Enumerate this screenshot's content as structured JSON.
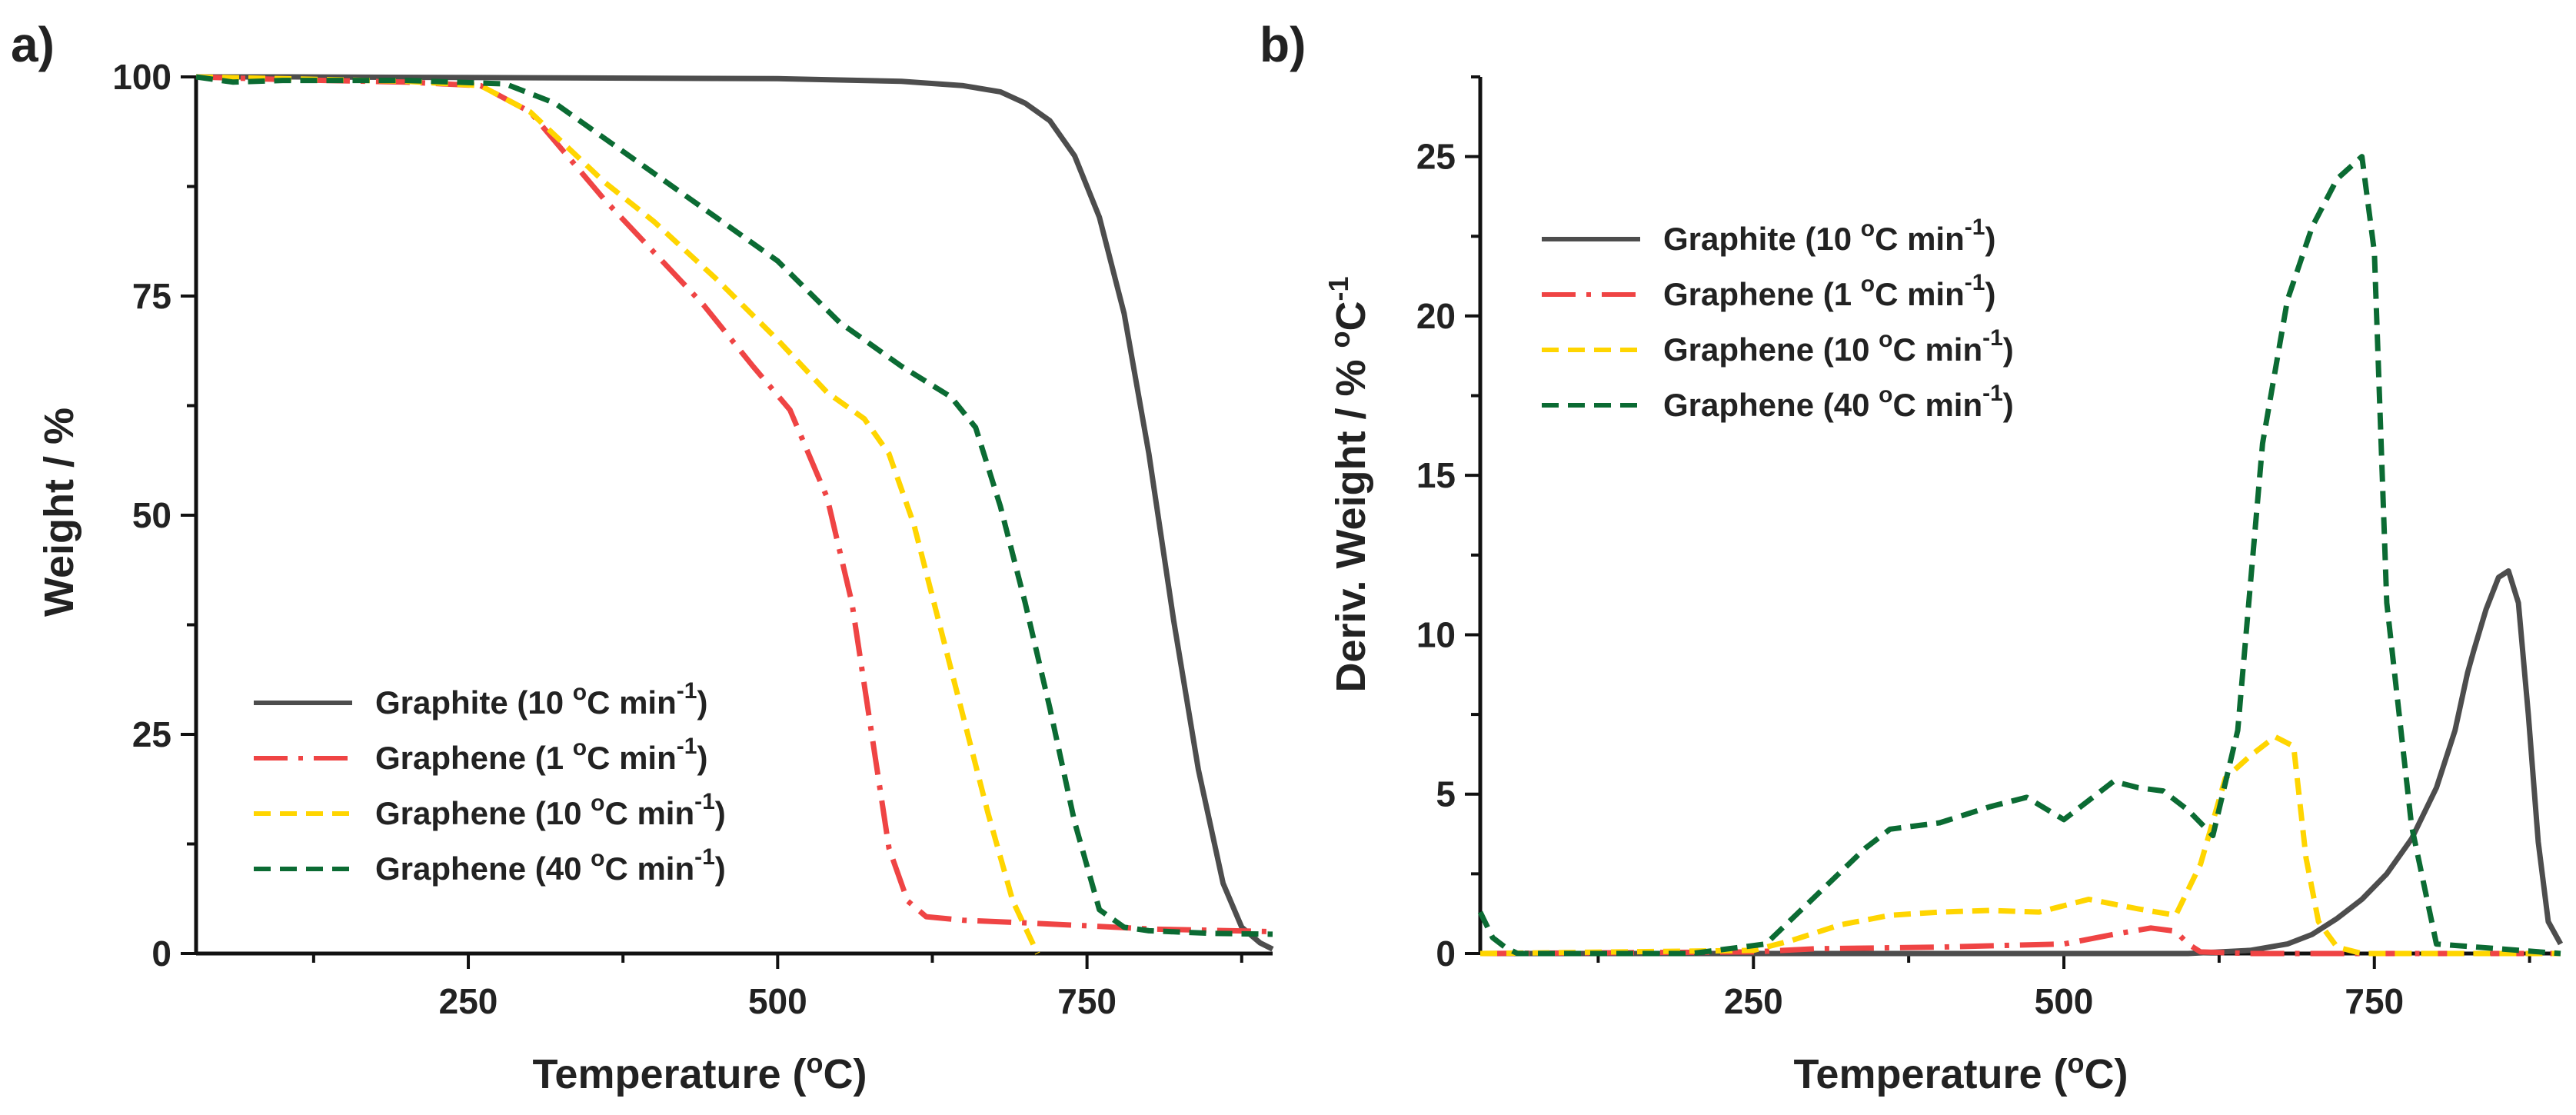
{
  "chart_data": [
    {
      "panel_label": "a)",
      "type": "line",
      "xlabel": "Temperature (°C)",
      "ylabel": "Weight / %",
      "xlim": [
        30,
        900
      ],
      "ylim": [
        0,
        100
      ],
      "xticks": [
        250,
        500,
        750
      ],
      "yticks": [
        0,
        25,
        50,
        75,
        100
      ],
      "legend_position": "bottom-left",
      "series": [
        {
          "name": "Graphite (10 °C min⁻¹)",
          "label_main": "Graphite (10 ",
          "label_o": "o",
          "label_mid": "C min",
          "label_exp": "-1",
          "label_end": ")",
          "color": "#4d4d4d",
          "style": "solid",
          "x": [
            30,
            100,
            300,
            500,
            600,
            650,
            680,
            700,
            720,
            740,
            760,
            780,
            800,
            820,
            840,
            860,
            875,
            890,
            900
          ],
          "y": [
            100,
            100,
            99.9,
            99.8,
            99.5,
            99,
            98.3,
            97,
            95,
            91,
            84,
            73,
            57,
            38,
            21,
            8,
            3,
            1.2,
            0.5
          ]
        },
        {
          "name": "Graphene (1 °C min⁻¹)",
          "label_main": "Graphene (1 ",
          "label_o": "o",
          "label_mid": "C min",
          "label_exp": "-1",
          "label_end": ")",
          "color": "#ef4444",
          "style": "dashdot",
          "x": [
            30,
            100,
            200,
            260,
            300,
            330,
            360,
            400,
            440,
            480,
            510,
            540,
            560,
            575,
            590,
            605,
            620,
            650,
            700,
            760,
            800,
            900
          ],
          "y": [
            100,
            99.7,
            99.4,
            99,
            96,
            91,
            86,
            80,
            74,
            67,
            62,
            52,
            40,
            26,
            12,
            6,
            4.2,
            3.8,
            3.5,
            3.1,
            2.8,
            2.5
          ]
        },
        {
          "name": "Graphene (10 °C min⁻¹)",
          "label_main": "Graphene (10 ",
          "label_o": "o",
          "label_mid": "C min",
          "label_exp": "-1",
          "label_end": ")",
          "color": "#ffd500",
          "style": "dash",
          "x": [
            30,
            100,
            200,
            260,
            300,
            330,
            360,
            400,
            450,
            500,
            540,
            570,
            590,
            610,
            630,
            650,
            670,
            690,
            710
          ],
          "y": [
            100,
            99.8,
            99.5,
            99,
            96,
            92,
            88,
            83.5,
            77,
            70,
            64,
            61,
            57,
            49,
            38,
            27,
            16,
            6,
            0
          ]
        },
        {
          "name": "Graphene (40 °C min⁻¹)",
          "label_main": "Graphene (40 ",
          "label_o": "o",
          "label_mid": "C min",
          "label_exp": "-1",
          "label_end": ")",
          "color": "#0b6b33",
          "style": "dash",
          "x": [
            30,
            60,
            100,
            200,
            280,
            320,
            360,
            400,
            450,
            500,
            550,
            600,
            640,
            660,
            680,
            700,
            720,
            740,
            760,
            780,
            800,
            850,
            900
          ],
          "y": [
            100,
            99.4,
            99.6,
            99.6,
            99.2,
            97,
            93,
            89,
            84,
            79,
            72,
            67,
            63.5,
            60,
            51,
            40,
            28,
            15,
            5,
            3,
            2.6,
            2.3,
            2.2
          ]
        }
      ]
    },
    {
      "panel_label": "b)",
      "type": "line",
      "xlabel": "Temperature (°C)",
      "ylabel": "Deriv. Weight / % °C⁻¹",
      "xlim": [
        30,
        900
      ],
      "ylim": [
        0,
        27.5
      ],
      "xticks": [
        250,
        500,
        750
      ],
      "yticks": [
        0,
        5,
        10,
        15,
        20,
        25
      ],
      "legend_position": "top-left",
      "series": [
        {
          "name": "Graphite (10 °C min⁻¹)",
          "label_main": "Graphite (10 ",
          "label_o": "o",
          "label_mid": "C min",
          "label_exp": "-1",
          "label_end": ")",
          "color": "#4d4d4d",
          "style": "solid",
          "x": [
            30,
            600,
            650,
            680,
            700,
            720,
            740,
            760,
            780,
            800,
            815,
            825,
            830,
            840,
            850,
            858,
            866,
            874,
            882,
            890,
            900
          ],
          "y": [
            0,
            0,
            0.1,
            0.3,
            0.6,
            1.1,
            1.7,
            2.5,
            3.6,
            5.2,
            7,
            8.8,
            9.5,
            10.8,
            11.8,
            12,
            11,
            7.5,
            3.5,
            1,
            0.3
          ]
        },
        {
          "name": "Graphene (1 °C min⁻¹)",
          "label_main": "Graphene (1 ",
          "label_o": "o",
          "label_mid": "C min",
          "label_exp": "-1",
          "label_end": ")",
          "color": "#ef4444",
          "style": "dashdot",
          "x": [
            30,
            250,
            300,
            400,
            450,
            500,
            540,
            570,
            590,
            600,
            610,
            650,
            900
          ],
          "y": [
            0,
            0.05,
            0.15,
            0.2,
            0.25,
            0.3,
            0.6,
            0.8,
            0.7,
            0.3,
            0.05,
            0,
            0
          ]
        },
        {
          "name": "Graphene (10 °C min⁻¹)",
          "label_main": "Graphene (10 ",
          "label_o": "o",
          "label_mid": "C min",
          "label_exp": "-1",
          "label_end": ")",
          "color": "#ffd500",
          "style": "dash",
          "x": [
            30,
            250,
            280,
            320,
            360,
            400,
            440,
            480,
            520,
            560,
            590,
            610,
            630,
            650,
            670,
            685,
            695,
            705,
            720,
            740,
            900
          ],
          "y": [
            0,
            0.1,
            0.4,
            0.9,
            1.2,
            1.3,
            1.35,
            1.3,
            1.7,
            1.4,
            1.2,
            2.8,
            5.5,
            6.2,
            6.8,
            6.5,
            3,
            1,
            0.2,
            0,
            0
          ]
        },
        {
          "name": "Graphene (40 °C min⁻¹)",
          "label_main": "Graphene (40 ",
          "label_o": "o",
          "label_mid": "C min",
          "label_exp": "-1",
          "label_end": ")",
          "color": "#0b6b33",
          "style": "dash",
          "x": [
            30,
            40,
            50,
            60,
            80,
            100,
            200,
            260,
            300,
            340,
            360,
            400,
            440,
            470,
            500,
            540,
            560,
            580,
            600,
            620,
            640,
            660,
            680,
            700,
            720,
            740,
            750,
            760,
            780,
            800,
            900
          ],
          "y": [
            1.3,
            0.5,
            0.2,
            0,
            0,
            0,
            0,
            0.3,
            1.8,
            3.3,
            3.9,
            4.1,
            4.6,
            4.9,
            4.2,
            5.4,
            5.2,
            5.1,
            4.5,
            3.7,
            7,
            16,
            20.5,
            22.8,
            24.3,
            25,
            22,
            11,
            4,
            0.3,
            0
          ]
        }
      ]
    }
  ]
}
